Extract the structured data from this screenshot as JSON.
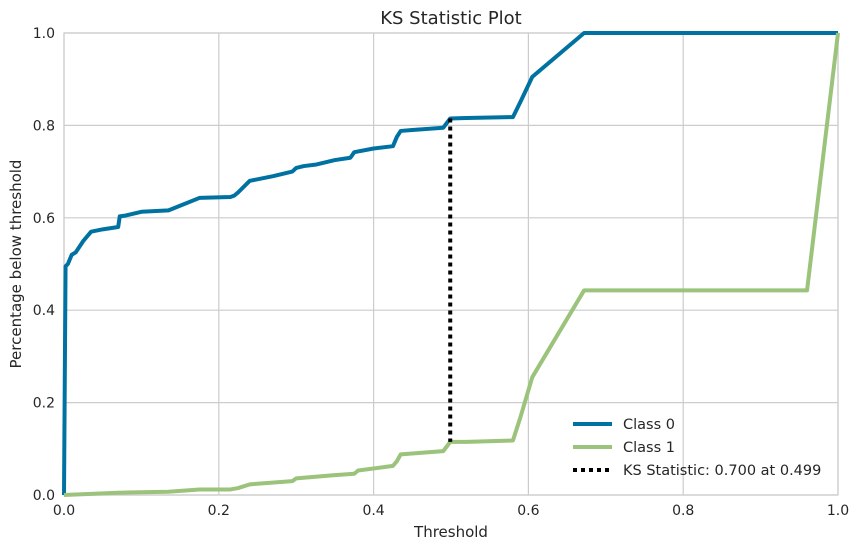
{
  "chart_data": {
    "type": "line",
    "title": "KS Statistic Plot",
    "xlabel": "Threshold",
    "ylabel": "Percentage below threshold",
    "xlim": [
      0,
      1
    ],
    "ylim": [
      0,
      1
    ],
    "xticks": [
      "0.0",
      "0.2",
      "0.4",
      "0.6",
      "0.8",
      "1.0"
    ],
    "yticks": [
      "0.0",
      "0.2",
      "0.4",
      "0.6",
      "0.8",
      "1.0"
    ],
    "grid": true,
    "legend_position": "bottom-right",
    "series": [
      {
        "name": "Class 0",
        "color": "#0072a1",
        "x": [
          0,
          0.002,
          0.005,
          0.01,
          0.015,
          0.025,
          0.035,
          0.05,
          0.07,
          0.072,
          0.08,
          0.1,
          0.135,
          0.175,
          0.215,
          0.22,
          0.225,
          0.24,
          0.27,
          0.295,
          0.3,
          0.31,
          0.325,
          0.35,
          0.37,
          0.375,
          0.4,
          0.425,
          0.43,
          0.435,
          0.45,
          0.49,
          0.499,
          0.52,
          0.58,
          0.59,
          0.605,
          0.672,
          1.0
        ],
        "y": [
          0,
          0.495,
          0.5,
          0.52,
          0.525,
          0.55,
          0.57,
          0.575,
          0.58,
          0.603,
          0.605,
          0.613,
          0.616,
          0.643,
          0.645,
          0.648,
          0.655,
          0.68,
          0.69,
          0.7,
          0.708,
          0.712,
          0.715,
          0.725,
          0.73,
          0.742,
          0.75,
          0.755,
          0.775,
          0.788,
          0.79,
          0.795,
          0.815,
          0.816,
          0.818,
          0.852,
          0.905,
          1.0,
          1.0
        ]
      },
      {
        "name": "Class 1",
        "color": "#9bc37b",
        "x": [
          0,
          0.07,
          0.135,
          0.175,
          0.215,
          0.225,
          0.24,
          0.295,
          0.3,
          0.35,
          0.375,
          0.38,
          0.425,
          0.43,
          0.435,
          0.49,
          0.499,
          0.52,
          0.58,
          0.59,
          0.605,
          0.672,
          0.96,
          1.0
        ],
        "y": [
          0,
          0.005,
          0.007,
          0.012,
          0.012,
          0.015,
          0.023,
          0.03,
          0.036,
          0.043,
          0.046,
          0.053,
          0.063,
          0.073,
          0.088,
          0.095,
          0.115,
          0.115,
          0.118,
          0.17,
          0.255,
          0.443,
          0.443,
          1.0
        ]
      }
    ],
    "ks_statistic": {
      "label": "KS Statistic: 0.700 at 0.499",
      "x": 0.499,
      "y_low": 0.115,
      "y_high": 0.815,
      "color": "#000000"
    }
  }
}
